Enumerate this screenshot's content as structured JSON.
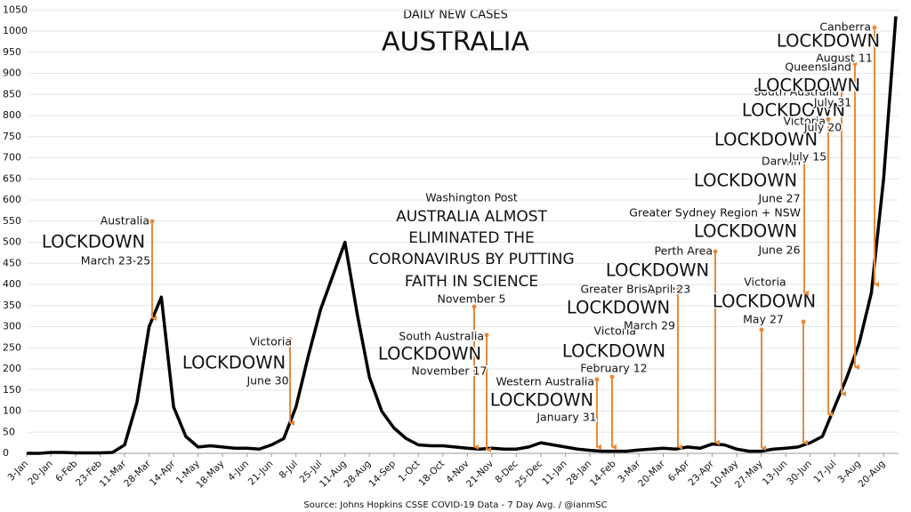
{
  "chart_data": {
    "type": "line",
    "title": "DAILY NEW CASES",
    "subtitle": "AUSTRALIA",
    "source": "Source: Johns Hopkins CSSE COVID-19 Data - 7 Day Avg. / @ianmSC",
    "categories": [
      "3-Jan",
      null,
      "20-Jan",
      null,
      "6-Feb",
      null,
      "23-Feb",
      null,
      "11-Mar",
      null,
      "28-Mar",
      null,
      "14-Apr",
      null,
      "1-May",
      null,
      "18-May",
      null,
      "4-Jun",
      null,
      "21-Jun",
      null,
      "8-Jul",
      null,
      "25-Jul",
      null,
      "11-Aug",
      null,
      "28-Aug",
      null,
      "14-Sep",
      null,
      "1-Oct",
      null,
      "18-Oct",
      null,
      "4-Nov",
      null,
      "21-Nov",
      null,
      "8-Dec",
      null,
      "25-Dec",
      null,
      "11-Jan",
      null,
      "28-Jan",
      null,
      "14-Feb",
      null,
      "3-Mar",
      null,
      "20-Mar",
      null,
      "6-Apr",
      null,
      "23-Apr",
      null,
      "10-May",
      null,
      "27-May",
      null,
      "13-Jun",
      null,
      "30-Jun",
      null,
      "17-Jul",
      null,
      "3-Aug",
      null,
      "20-Aug",
      null
    ],
    "values": [
      0,
      0,
      2,
      2,
      1,
      1,
      1,
      2,
      20,
      120,
      300,
      370,
      110,
      40,
      15,
      18,
      15,
      12,
      12,
      10,
      20,
      35,
      110,
      230,
      340,
      420,
      500,
      330,
      180,
      100,
      60,
      35,
      20,
      18,
      18,
      15,
      12,
      10,
      12,
      10,
      10,
      15,
      25,
      20,
      15,
      10,
      7,
      5,
      5,
      5,
      8,
      10,
      12,
      10,
      15,
      12,
      22,
      20,
      10,
      5,
      5,
      10,
      12,
      15,
      25,
      40,
      110,
      180,
      260,
      380,
      650,
      1035
    ],
    "color": "#000000",
    "ylim": [
      0,
      1050
    ],
    "yticks": [
      0,
      50,
      100,
      150,
      200,
      250,
      300,
      350,
      400,
      450,
      500,
      550,
      600,
      650,
      700,
      750,
      800,
      850,
      900,
      950,
      1000,
      1050
    ],
    "annotation_color": "#e8893a",
    "annotations": [
      {
        "lines": [
          "Australia",
          "LOCKDOWN",
          "March 23-25"
        ]
      },
      {
        "lines": [
          "Victoria",
          "LOCKDOWN",
          "June 30"
        ]
      },
      {
        "lines": [
          "Washington Post",
          "AUSTRALIA ALMOST",
          "ELIMINATED THE",
          "CORONAVIRUS BY PUTTING",
          "FAITH IN SCIENCE",
          "November 5"
        ]
      },
      {
        "lines": [
          "South Australia",
          "LOCKDOWN",
          "November 17"
        ]
      },
      {
        "lines": [
          "Western Australia",
          "LOCKDOWN",
          "January 31"
        ]
      },
      {
        "lines": [
          "Victoria",
          "LOCKDOWN",
          "February 12"
        ]
      },
      {
        "lines": [
          "Greater Brisbane",
          "LOCKDOWN",
          "March 29"
        ]
      },
      {
        "lines": [
          "Perth Area",
          "LOCKDOWN",
          "April 23"
        ]
      },
      {
        "lines": [
          "Victoria",
          "LOCKDOWN",
          "May 27"
        ]
      },
      {
        "lines": [
          "Greater Sydney Region + NSW",
          "LOCKDOWN",
          "June 26"
        ]
      },
      {
        "lines": [
          "Darwin",
          "LOCKDOWN",
          "June 27"
        ]
      },
      {
        "lines": [
          "Victoria",
          "LOCKDOWN",
          "July 15"
        ]
      },
      {
        "lines": [
          "South Australia",
          "LOCKDOWN",
          "July 20"
        ]
      },
      {
        "lines": [
          "Queensland",
          "LOCKDOWN",
          "July 31"
        ]
      },
      {
        "lines": [
          "Canberra",
          "LOCKDOWN",
          "August 11"
        ]
      }
    ]
  }
}
